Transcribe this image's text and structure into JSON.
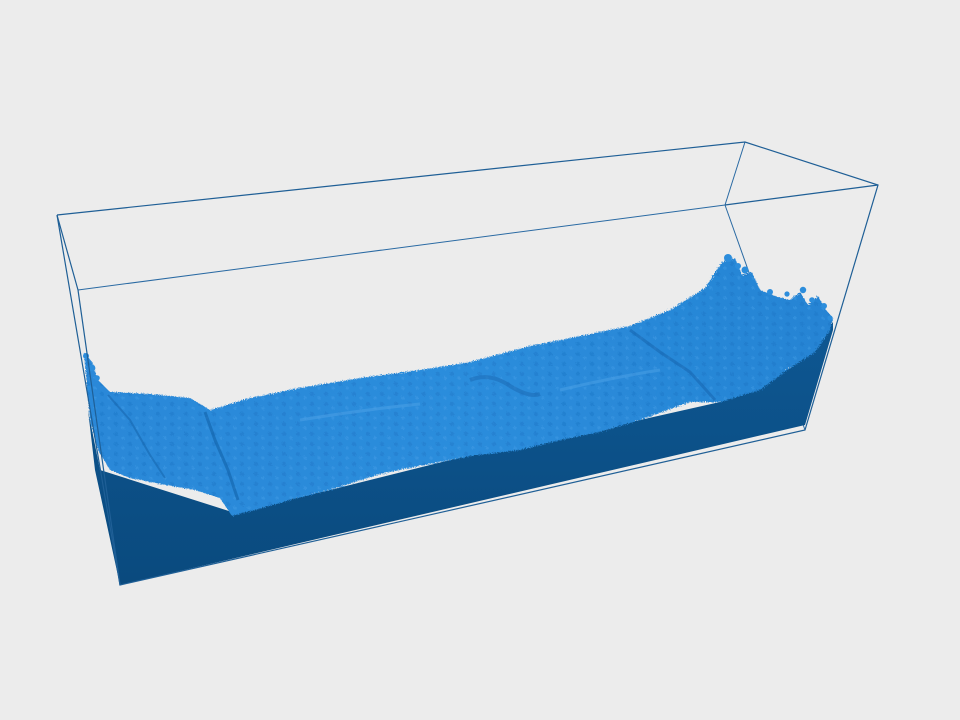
{
  "scene": {
    "background_color": "#ececec",
    "tank_edge_color": "#1f5f96",
    "fluid_front_color": "#0b4e84",
    "fluid_surface_color": "#1f7fd0",
    "fluid_highlight_color": "#3a96e2",
    "fluid_shadow_color": "#1669b5"
  }
}
